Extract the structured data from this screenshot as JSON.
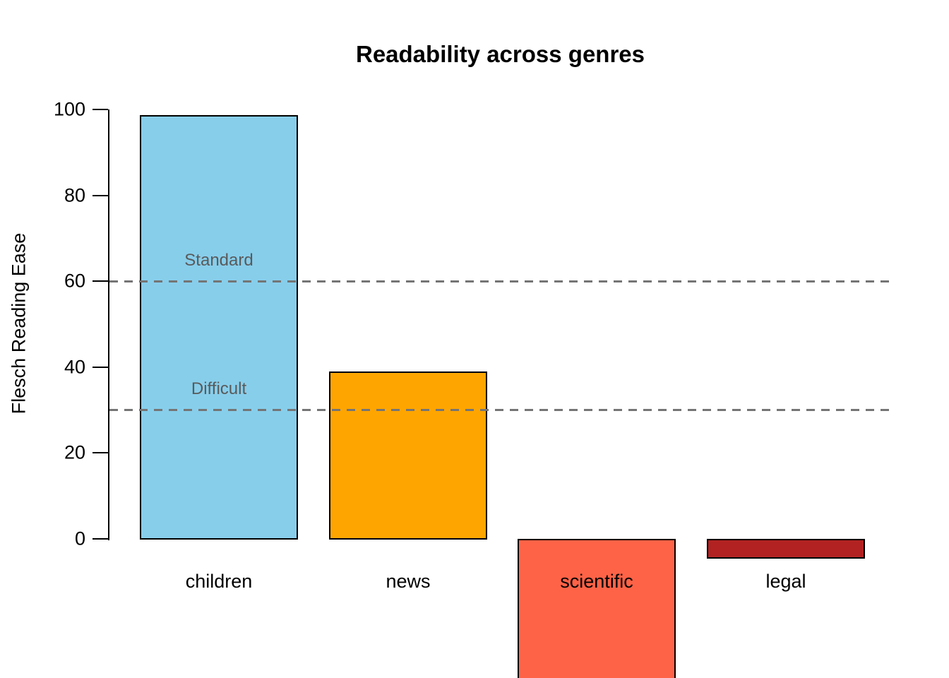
{
  "chart_data": {
    "type": "bar",
    "title": "Readability across genres",
    "xlabel": "",
    "ylabel": "Flesch Reading Ease",
    "categories": [
      "children",
      "news",
      "scientific",
      "legal"
    ],
    "values": [
      98.7,
      38.9,
      -33,
      -4.4
    ],
    "bar_colors": [
      "#87CEEB",
      "#FFA500",
      "#FF6347",
      "#B22222"
    ],
    "bar_border_color": "#000000",
    "yticks": [
      0,
      20,
      40,
      60,
      80,
      100
    ],
    "y_axis_range": [
      0,
      100
    ],
    "grid": false,
    "legend": false,
    "scientific_bar_clipped_at_bottom": true,
    "reference_lines": [
      {
        "value": 60,
        "label": "Standard"
      },
      {
        "value": 30,
        "label": "Difficult"
      }
    ],
    "reference_line_color": "#757575",
    "annotation_text_color": "#5a5a5a"
  }
}
